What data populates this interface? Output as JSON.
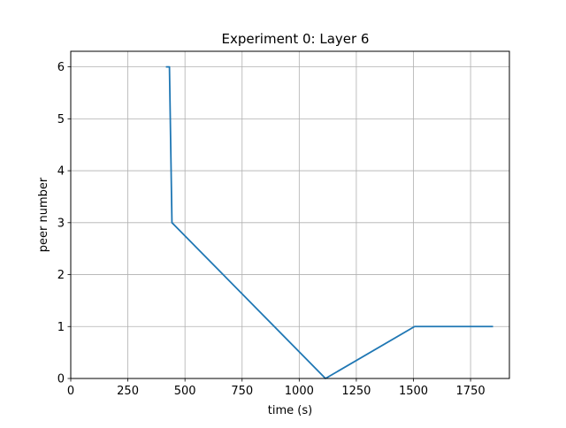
{
  "chart_data": {
    "type": "line",
    "title": "Experiment 0: Layer 6",
    "xlabel": "time (s)",
    "ylabel": "peer number",
    "xlim": [
      0,
      1920
    ],
    "ylim": [
      0,
      6.3
    ],
    "grid": true,
    "legend": "none",
    "line_color": "#1f77b4",
    "x_ticks": [
      0,
      250,
      500,
      750,
      1000,
      1250,
      1500,
      1750
    ],
    "y_ticks": [
      0,
      1,
      2,
      3,
      4,
      5,
      6
    ],
    "series": [
      {
        "x": [
          420,
          432,
          443,
          1115,
          1505,
          1845
        ],
        "y": [
          6,
          6,
          3,
          0,
          1,
          1
        ]
      }
    ]
  }
}
